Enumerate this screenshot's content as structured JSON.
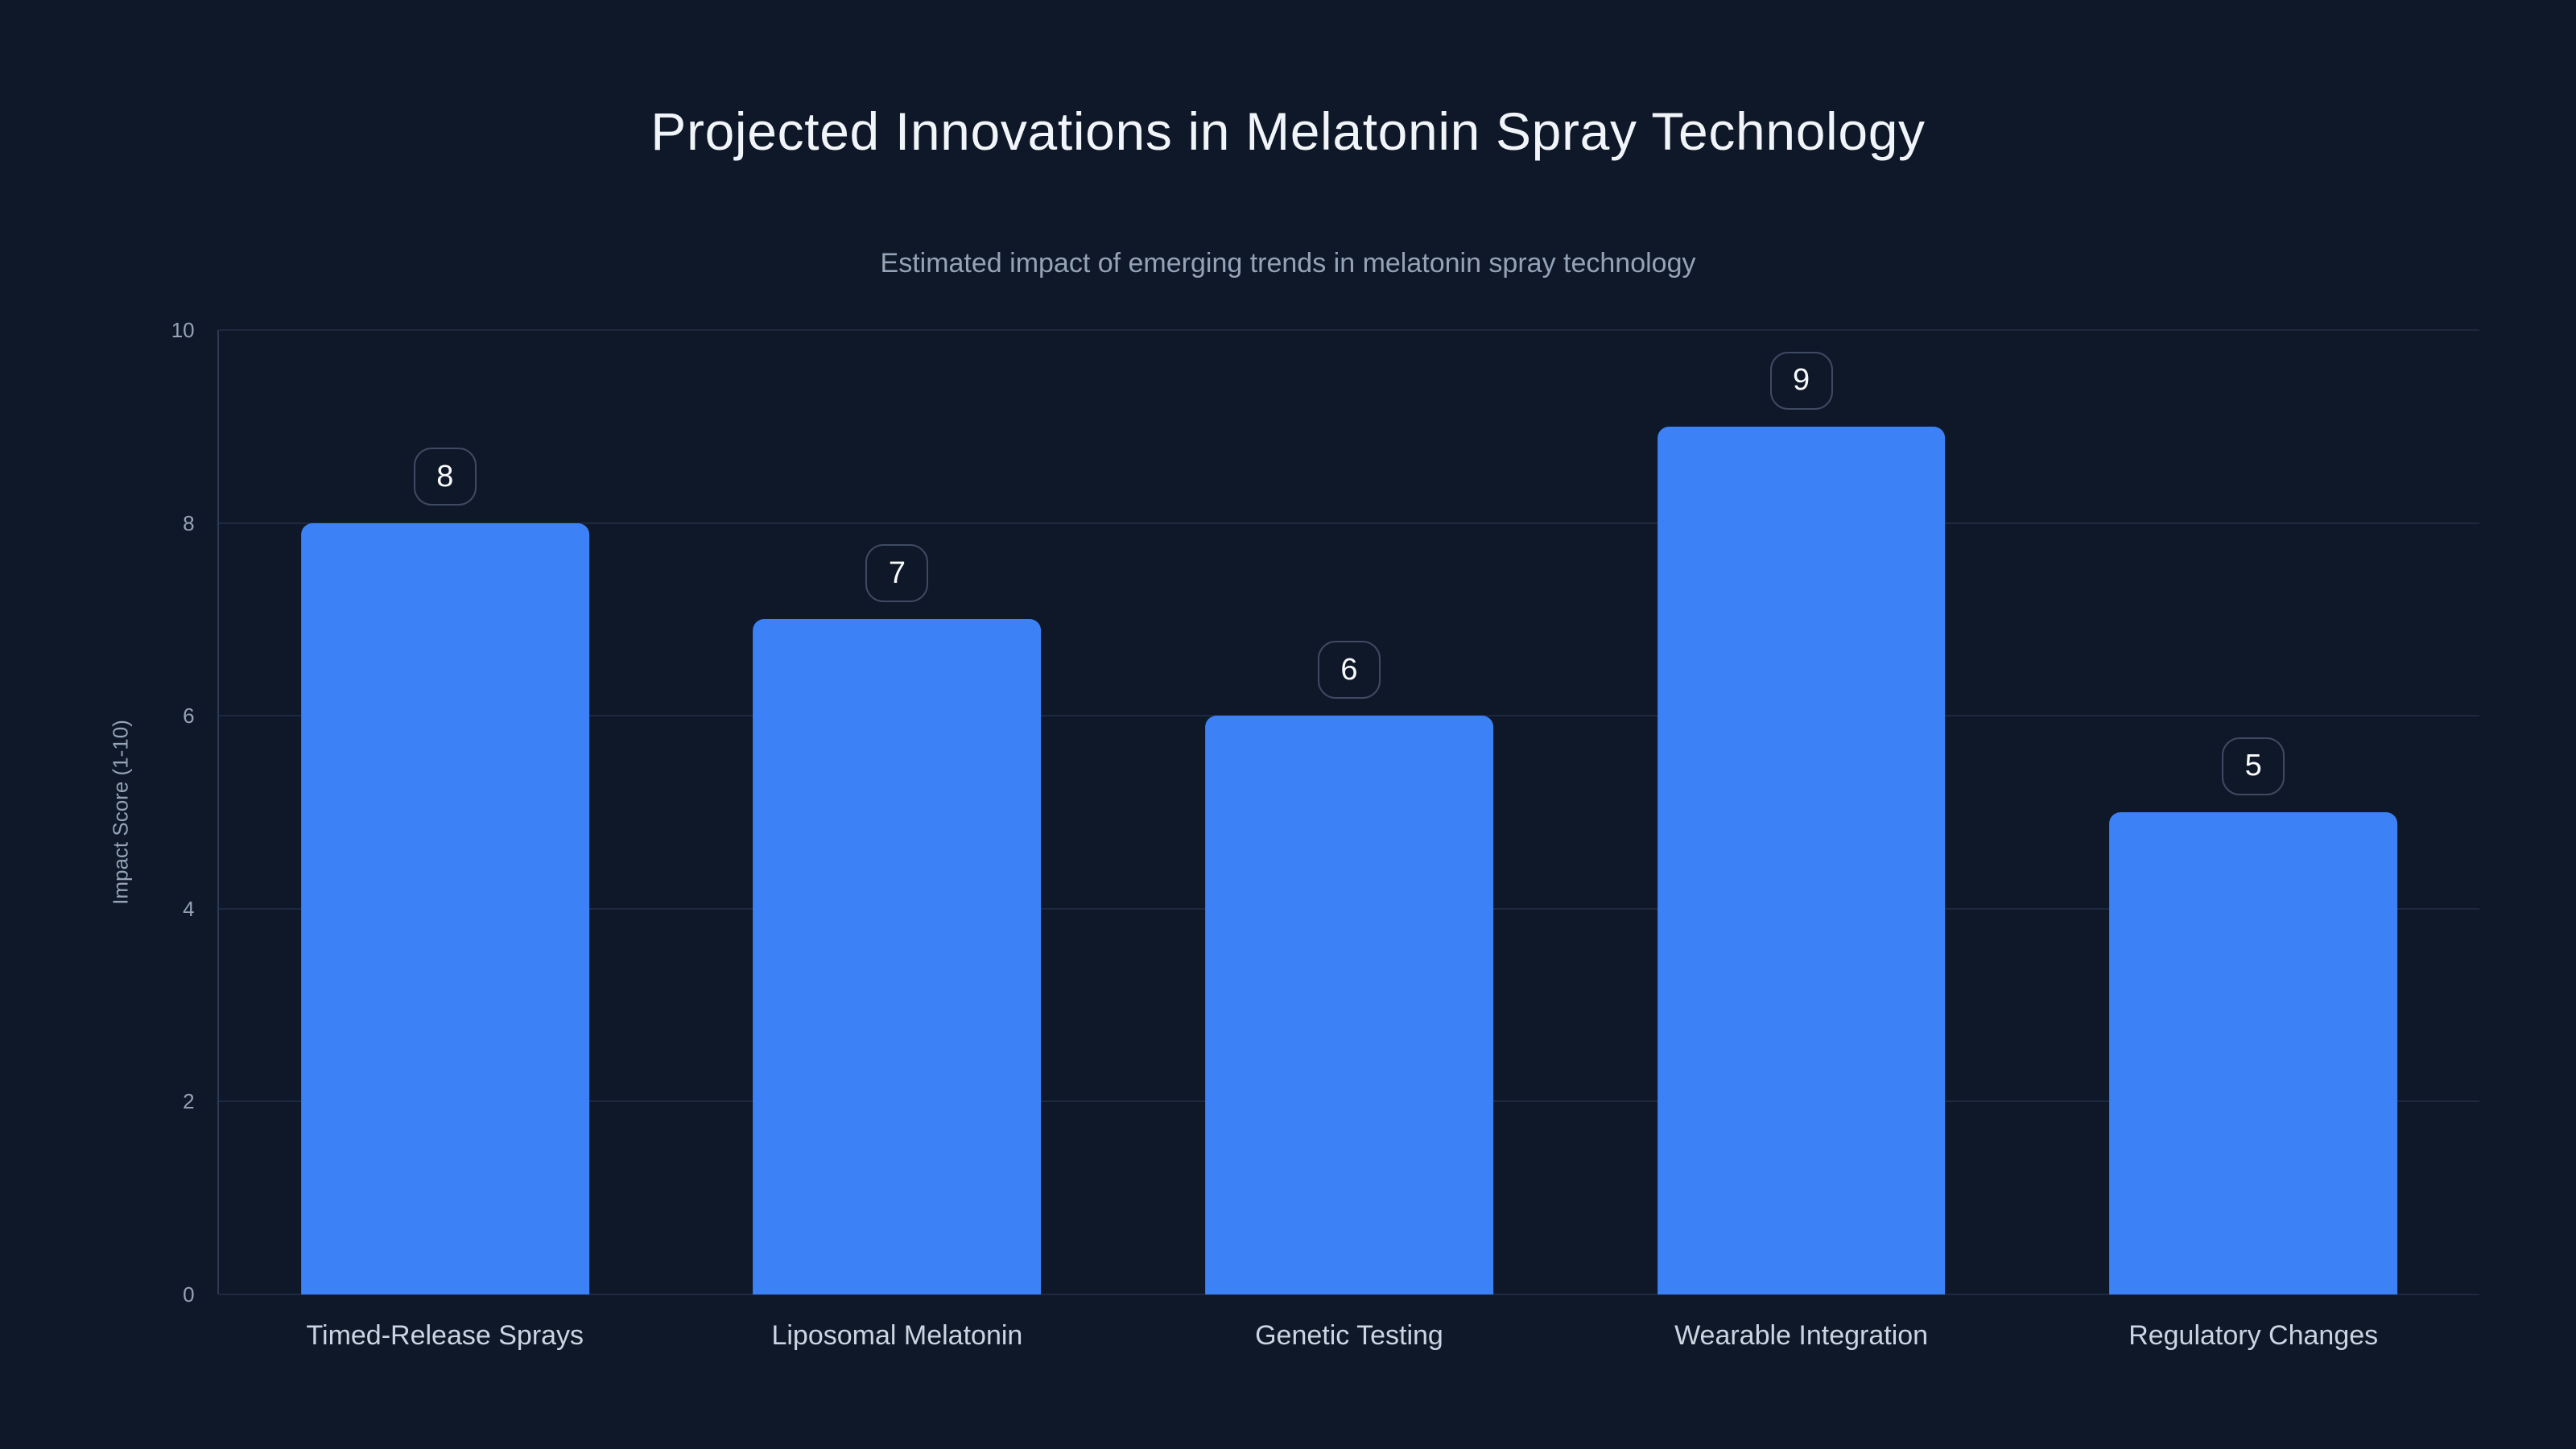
{
  "chart_data": {
    "type": "bar",
    "title": "Projected Innovations in Melatonin Spray Technology",
    "subtitle": "Estimated impact of emerging trends in melatonin spray technology",
    "categories": [
      "Timed-Release Sprays",
      "Liposomal Melatonin",
      "Genetic Testing",
      "Wearable Integration",
      "Regulatory Changes"
    ],
    "values": [
      8,
      7,
      6,
      9,
      5
    ],
    "value_labels": [
      "8",
      "7",
      "6",
      "9",
      "5"
    ],
    "xlabel": "",
    "ylabel": "Impact Score (1-10)",
    "ylim": [
      0,
      10
    ],
    "yticks": [
      0,
      2,
      4,
      6,
      8,
      10
    ],
    "grid": true,
    "legend": false,
    "colors": {
      "background": "#0f1828",
      "bar": "#3c82f6",
      "title_text": "#f1f5f9",
      "subtitle_text": "#94a3b8",
      "axis_tick_text": "#94a3b8",
      "category_text": "#cbd5e1",
      "gridline": "#1d2940",
      "axis_line": "#2b3a55",
      "value_badge_border": "#3e4a63",
      "value_badge_text": "#f8fafc"
    }
  }
}
